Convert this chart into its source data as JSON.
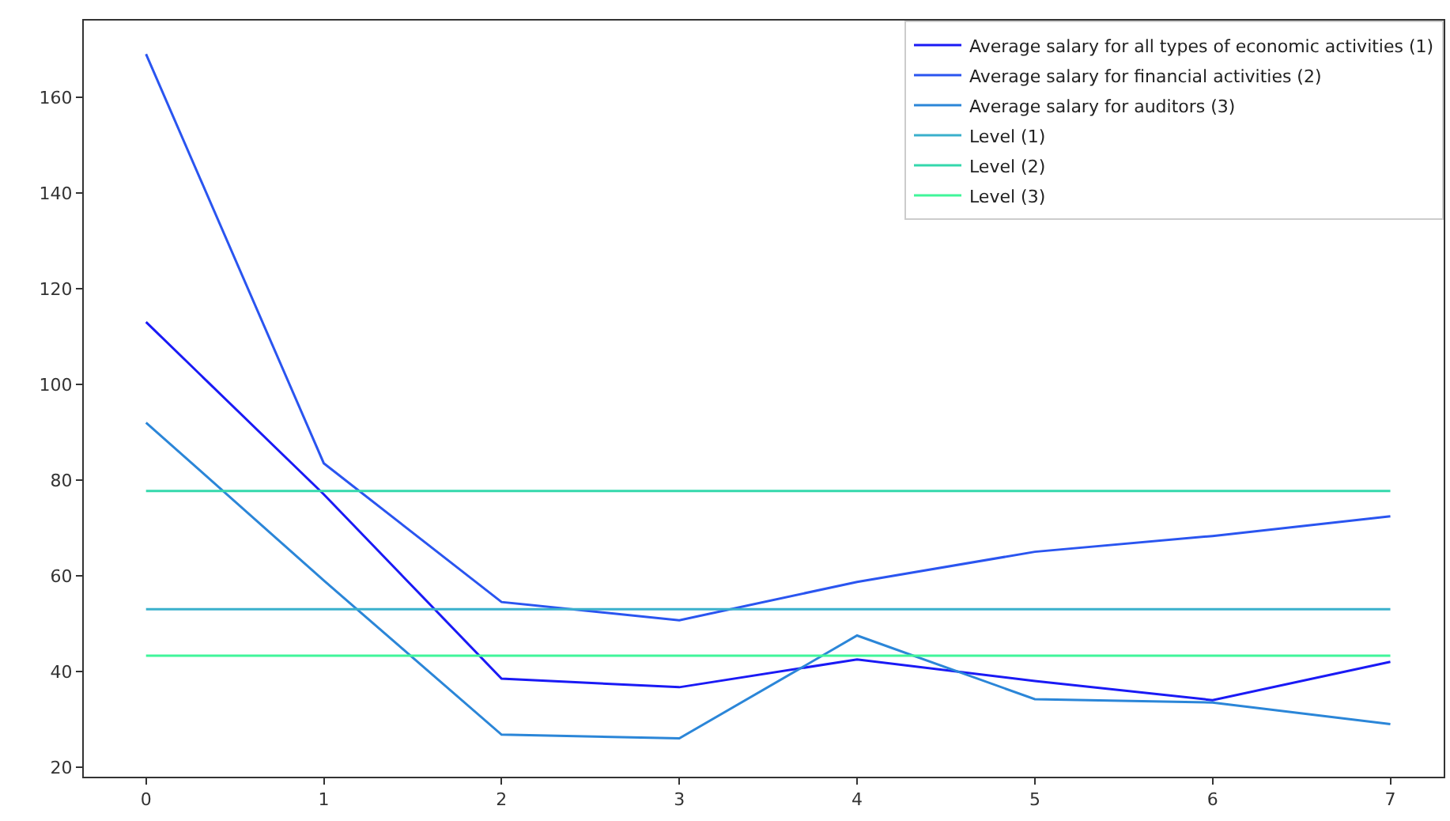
{
  "chart_data": {
    "type": "line",
    "x": [
      0,
      1,
      2,
      3,
      4,
      5,
      6,
      7
    ],
    "series": [
      {
        "name": "Average salary for all types of economic activities (1)",
        "color": "#1a1af5",
        "values": [
          113,
          77,
          38.5,
          36.7,
          42.5,
          38,
          34,
          42
        ]
      },
      {
        "name": "Average salary for financial activities (2)",
        "color": "#2a55f0",
        "values": [
          169,
          83.5,
          54.5,
          50.7,
          58.7,
          65,
          68.3,
          72.4
        ]
      },
      {
        "name": "Average salary for auditors (3)",
        "color": "#2b86d8",
        "values": [
          92,
          59,
          26.8,
          26,
          47.5,
          34.2,
          33.5,
          29
        ]
      },
      {
        "name": "Level (1)",
        "color": "#3ab0cc",
        "values": [
          53,
          53,
          53,
          53,
          53,
          53,
          53,
          53
        ]
      },
      {
        "name": "Level (2)",
        "color": "#34d8ac",
        "values": [
          77.7,
          77.7,
          77.7,
          77.7,
          77.7,
          77.7,
          77.7,
          77.7
        ]
      },
      {
        "name": "Level (3)",
        "color": "#40f59a",
        "values": [
          43.3,
          43.3,
          43.3,
          43.3,
          43.3,
          43.3,
          43.3,
          43.3
        ]
      }
    ],
    "xlim": [
      -0.35,
      7.3
    ],
    "xticks": [
      0,
      1,
      2,
      3,
      4,
      5,
      6,
      7
    ],
    "ylim": [
      18,
      176
    ],
    "yticks": [
      20,
      40,
      60,
      80,
      100,
      120,
      140,
      160
    ],
    "legend": "top right",
    "marker": "none",
    "line_style": "solid"
  }
}
